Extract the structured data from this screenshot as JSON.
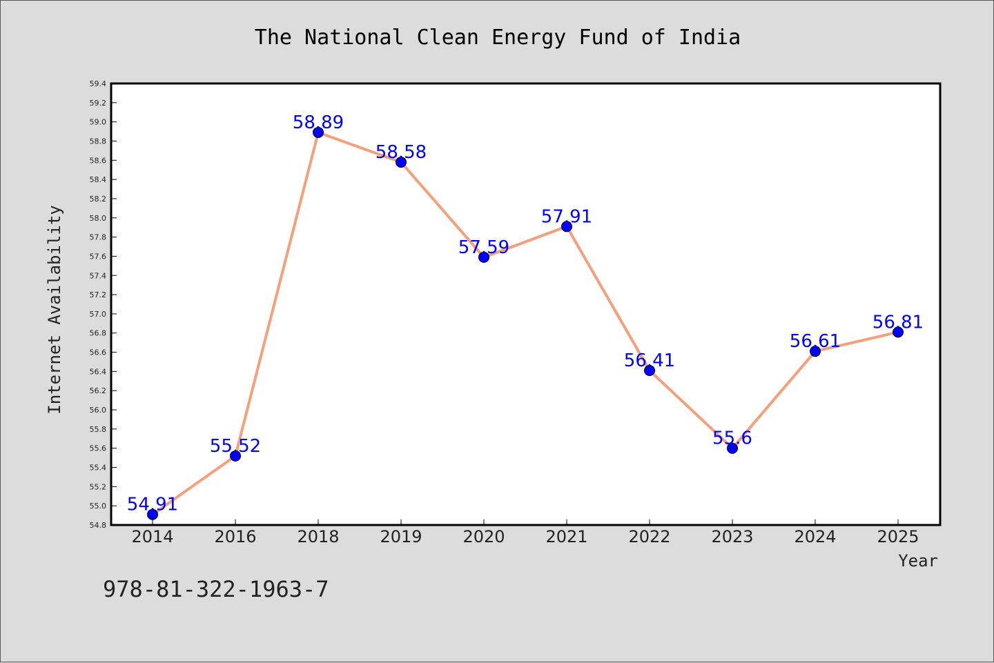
{
  "chart_data": {
    "type": "line",
    "title": "The National Clean Energy Fund of India",
    "xlabel": "Year",
    "ylabel": "Internet Availability",
    "categories": [
      "2014",
      "2016",
      "2018",
      "2019",
      "2020",
      "2021",
      "2022",
      "2023",
      "2024",
      "2025"
    ],
    "values": [
      54.91,
      55.52,
      58.89,
      58.58,
      57.59,
      57.91,
      56.41,
      55.6,
      56.61,
      56.81
    ],
    "data_labels": [
      "54.91",
      "55.52",
      "58.89",
      "58.58",
      "57.59",
      "57.91",
      "56.41",
      "55.6",
      "56.61",
      "56.81"
    ],
    "ylim": [
      54.8,
      59.4
    ],
    "yticks": [
      "54.8",
      "55.0",
      "55.2",
      "55.4",
      "55.6",
      "55.8",
      "56.0",
      "56.2",
      "56.4",
      "56.6",
      "56.8",
      "57.0",
      "57.2",
      "57.4",
      "57.6",
      "57.8",
      "58.0",
      "58.2",
      "58.4",
      "58.6",
      "58.8",
      "59.0",
      "59.2",
      "59.4"
    ],
    "grid": false,
    "colors": {
      "line": "#f5a07a",
      "marker": "#0000ff",
      "label": "#0000ff",
      "background": "#dcdcdc",
      "plot_background": "#ffffff"
    }
  },
  "footer": {
    "isbn": "978-81-322-1963-7"
  }
}
